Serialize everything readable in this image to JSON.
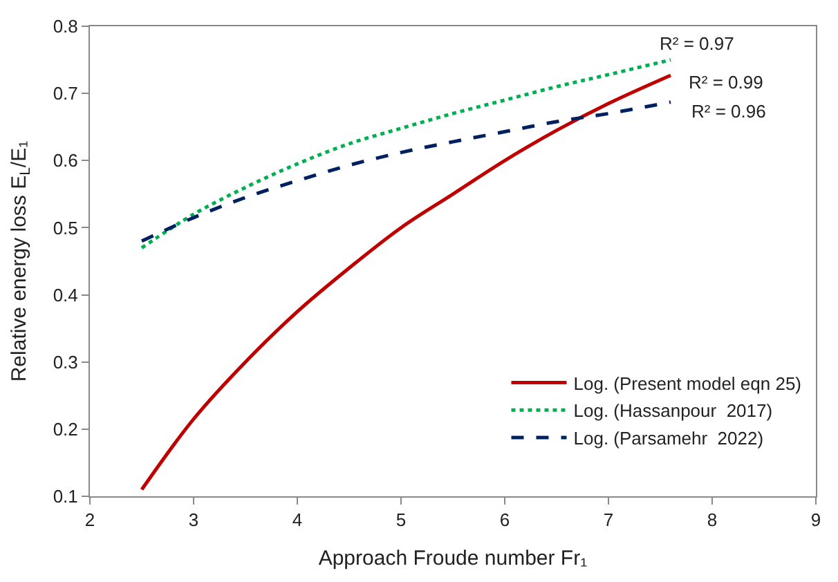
{
  "chart_data": {
    "type": "line",
    "xlabel": "Approach Froude number Fr₁",
    "ylabel": "Relative energy loss E$_{L}$/E₁",
    "x": [
      2.5,
      3,
      3.5,
      4,
      4.5,
      5,
      5.5,
      6,
      6.5,
      7,
      7.6
    ],
    "series": [
      {
        "name": "Log. (Present model eqn 25)",
        "color": "#c00000",
        "line_style": "solid",
        "values": [
          0.11,
          0.215,
          0.3,
          0.375,
          0.44,
          0.5,
          0.55,
          0.6,
          0.645,
          0.685,
          0.727
        ]
      },
      {
        "name": "Log. (Hassanpour  2017)",
        "color": "#00b050",
        "line_style": "dotted",
        "values": [
          0.47,
          0.52,
          0.56,
          0.595,
          0.625,
          0.648,
          0.67,
          0.69,
          0.71,
          0.728,
          0.75
        ]
      },
      {
        "name": "Log. (Parsamehr  2022)",
        "color": "#002060",
        "line_style": "dashed",
        "values": [
          0.48,
          0.515,
          0.545,
          0.57,
          0.593,
          0.612,
          0.628,
          0.643,
          0.658,
          0.67,
          0.687
        ]
      }
    ],
    "annotations": [
      "R² = 0.97",
      "R² = 0.99",
      "R² = 0.96"
    ],
    "xlim": [
      2,
      9
    ],
    "xticks": [
      2,
      3,
      4,
      5,
      6,
      7,
      8,
      9
    ],
    "ylim": [
      0.1,
      0.8
    ],
    "yticks": [
      0.1,
      0.2,
      0.3,
      0.4,
      0.5,
      0.6,
      0.7,
      0.8
    ],
    "grid": false,
    "legend": "bottom right",
    "marker": "none"
  }
}
